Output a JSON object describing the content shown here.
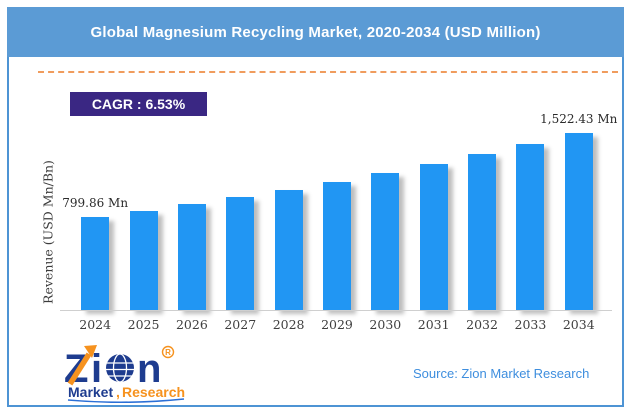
{
  "title": "Global Magnesium Recycling Market, 2020-2034 (USD Million)",
  "cagr_badge": "CAGR : 6.53%",
  "source": "Source: Zion Market Research",
  "logo": {
    "brand_z": "Z",
    "brand_i": "i",
    "brand_n": "n",
    "registered": "R",
    "sub_market": "Market",
    "sub_comma": ",",
    "sub_research": "Research"
  },
  "chart_data": {
    "type": "bar",
    "title": "Global Magnesium Recycling Market, 2020-2034 (USD Million)",
    "categories": [
      "2024",
      "2025",
      "2026",
      "2027",
      "2028",
      "2029",
      "2030",
      "2031",
      "2032",
      "2033",
      "2034"
    ],
    "values": [
      799.86,
      853.1,
      909.8,
      970.4,
      1034.9,
      1103.8,
      1177.2,
      1255.5,
      1339.0,
      1428.1,
      1522.43
    ],
    "point_labels": [
      "799.86 Mn",
      "",
      "",
      "",
      "",
      "",
      "",
      "",
      "",
      "",
      "1,522.43 Mn"
    ],
    "xlabel": "",
    "ylabel": "Revenue (USD Mn/Bn)",
    "ylim": [
      0,
      1600
    ],
    "grid": false,
    "legend": false,
    "cagr": "6.53%",
    "bar_color": "#2196F3"
  },
  "colors": {
    "title_bar_bg": "#5B9BD5",
    "frame_border": "#4E94D4",
    "bar_fill": "#2196F3",
    "cagr_badge_bg": "#3A2783",
    "dashed_line": "#F09C5D",
    "source_text": "#3E8EDE",
    "logo_navy": "#1E3C8F",
    "logo_orange": "#F6921E"
  }
}
